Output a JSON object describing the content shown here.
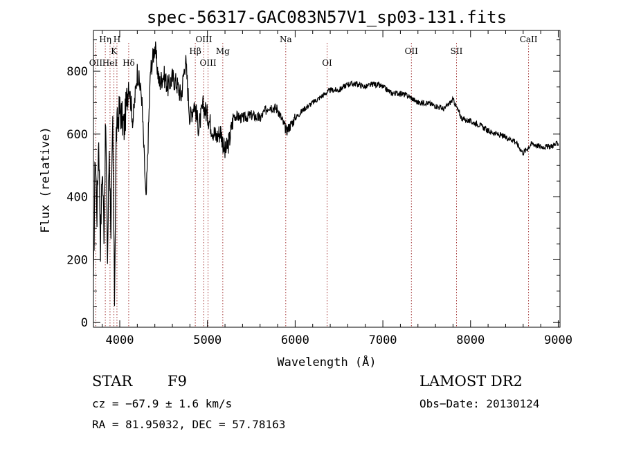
{
  "chart_data": {
    "type": "line",
    "title": "spec-56317-GAC083N57V1_sp03-131.fits",
    "xlabel": "Wavelength (Å)",
    "ylabel": "Flux (relative)",
    "xlim": [
      3700,
      9020
    ],
    "ylim": [
      -15,
      930
    ],
    "xticks": [
      4000,
      5000,
      6000,
      7000,
      8000,
      9000
    ],
    "yticks": [
      0,
      200,
      400,
      600,
      800
    ],
    "grid": false,
    "colors": {
      "spectrum": "#000000",
      "lines": "#8b0000"
    },
    "spectral_lines": [
      {
        "label": "OII",
        "wavelength": 3727
      },
      {
        "label": "Hη",
        "wavelength": 3835
      },
      {
        "label": "K",
        "wavelength": 3934
      },
      {
        "label": "H",
        "wavelength": 3968
      },
      {
        "label": "HeI",
        "wavelength": 3889
      },
      {
        "label": "Hδ",
        "wavelength": 4102
      },
      {
        "label": "Hβ",
        "wavelength": 4861
      },
      {
        "label": "OIII",
        "wavelength": 4959
      },
      {
        "label": "OIII",
        "wavelength": 5007
      },
      {
        "label": "Mg",
        "wavelength": 5175
      },
      {
        "label": "Na",
        "wavelength": 5893
      },
      {
        "label": "OI",
        "wavelength": 6364
      },
      {
        "label": "OII",
        "wavelength": 7325
      },
      {
        "label": "SII",
        "wavelength": 7840
      },
      {
        "label": "CaII",
        "wavelength": 8662
      }
    ],
    "series": [
      {
        "name": "",
        "x": [
          3700,
          3720,
          3740,
          3760,
          3780,
          3800,
          3820,
          3840,
          3860,
          3880,
          3900,
          3920,
          3940,
          3960,
          3980,
          4000,
          4050,
          4100,
          4150,
          4200,
          4250,
          4300,
          4350,
          4400,
          4450,
          4500,
          4550,
          4600,
          4650,
          4700,
          4750,
          4800,
          4850,
          4900,
          4950,
          5000,
          5050,
          5100,
          5150,
          5200,
          5250,
          5300,
          5400,
          5500,
          5600,
          5700,
          5800,
          5900,
          6000,
          6100,
          6200,
          6300,
          6400,
          6500,
          6600,
          6700,
          6800,
          6900,
          7000,
          7100,
          7200,
          7300,
          7400,
          7500,
          7600,
          7700,
          7800,
          7850,
          7900,
          8000,
          8100,
          8200,
          8300,
          8400,
          8500,
          8600,
          8700,
          8800,
          8900,
          9000
        ],
        "y": [
          100,
          550,
          350,
          600,
          250,
          500,
          300,
          640,
          200,
          560,
          300,
          620,
          80,
          600,
          650,
          680,
          620,
          770,
          640,
          800,
          720,
          380,
          800,
          880,
          760,
          790,
          750,
          780,
          760,
          720,
          840,
          650,
          700,
          620,
          690,
          660,
          620,
          590,
          610,
          540,
          580,
          660,
          650,
          660,
          650,
          690,
          680,
          610,
          650,
          680,
          700,
          720,
          740,
          740,
          760,
          760,
          750,
          760,
          750,
          730,
          730,
          720,
          700,
          700,
          690,
          680,
          710,
          680,
          650,
          640,
          630,
          610,
          600,
          590,
          580,
          540,
          570,
          560,
          560,
          570
        ]
      }
    ]
  },
  "info": {
    "object_class": "STAR",
    "subclass": "F9",
    "survey": "LAMOST DR2",
    "velocity": "cz = −67.9 ± 1.6 km/s",
    "obs_date": "Obs−Date: 20130124",
    "coords": "RA =  81.95032, DEC =  57.78163"
  }
}
